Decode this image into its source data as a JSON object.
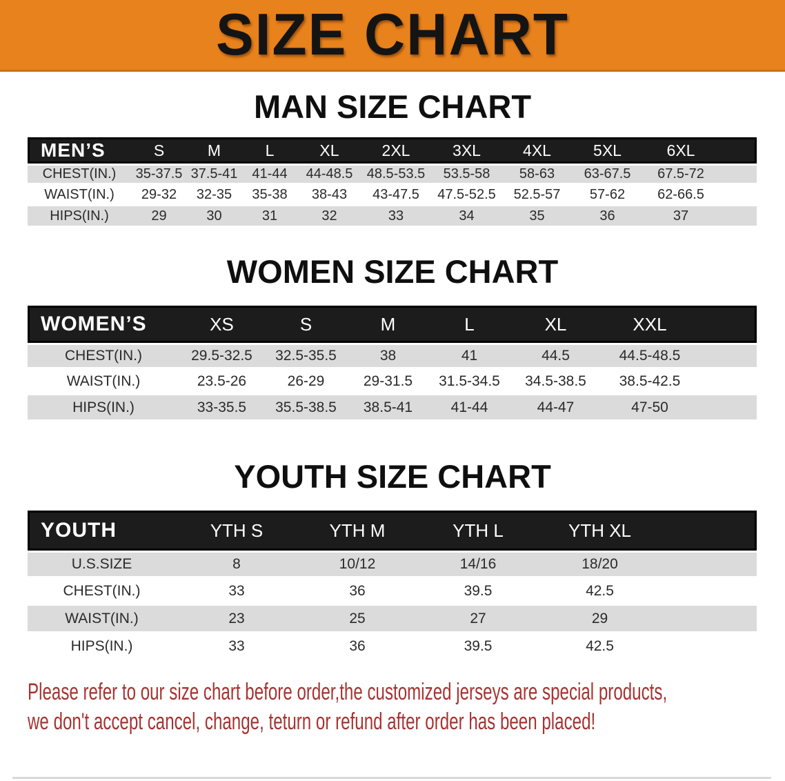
{
  "banner": {
    "title": "SIZE CHART",
    "bg_color": "#E8821C",
    "text_color": "#141414"
  },
  "sections": [
    {
      "id": "men",
      "heading": "MAN SIZE CHART",
      "table": {
        "corner": "MEN’S",
        "sizes": [
          "S",
          "M",
          "L",
          "XL",
          "2XL",
          "3XL",
          "4XL",
          "5XL",
          "6XL"
        ],
        "rows": [
          {
            "label": "CHEST(IN.)",
            "shade": true,
            "values": [
              "35-37.5",
              "37.5-41",
              "41-44",
              "44-48.5",
              "48.5-53.5",
              "53.5-58",
              "58-63",
              "63-67.5",
              "67.5-72"
            ]
          },
          {
            "label": "WAIST(IN.)",
            "shade": false,
            "values": [
              "29-32",
              "32-35",
              "35-38",
              "38-43",
              "43-47.5",
              "47.5-52.5",
              "52.5-57",
              "57-62",
              "62-66.5"
            ]
          },
          {
            "label": "HIPS(IN.)",
            "shade": true,
            "values": [
              "29",
              "30",
              "31",
              "32",
              "33",
              "34",
              "35",
              "36",
              "37"
            ]
          }
        ]
      }
    },
    {
      "id": "women",
      "heading": "WOMEN SIZE CHART",
      "table": {
        "corner": "WOMEN’S",
        "sizes": [
          "XS",
          "S",
          "M",
          "L",
          "XL",
          "XXL"
        ],
        "rows": [
          {
            "label": "CHEST(IN.)",
            "shade": true,
            "values": [
              "29.5-32.5",
              "32.5-35.5",
              "38",
              "41",
              "44.5",
              "44.5-48.5"
            ]
          },
          {
            "label": "WAIST(IN.)",
            "shade": false,
            "values": [
              "23.5-26",
              "26-29",
              "29-31.5",
              "31.5-34.5",
              "34.5-38.5",
              "38.5-42.5"
            ]
          },
          {
            "label": "HIPS(IN.)",
            "shade": true,
            "values": [
              "33-35.5",
              "35.5-38.5",
              "38.5-41",
              "41-44",
              "44-47",
              "47-50"
            ]
          }
        ]
      }
    },
    {
      "id": "youth",
      "heading": "YOUTH SIZE CHART",
      "table": {
        "corner": "YOUTH",
        "sizes": [
          "YTH S",
          "YTH M",
          "YTH L",
          "YTH XL"
        ],
        "rows": [
          {
            "label": "U.S.SIZE",
            "shade": true,
            "values": [
              "8",
              "10/12",
              "14/16",
              "18/20"
            ]
          },
          {
            "label": "CHEST(IN.)",
            "shade": false,
            "values": [
              "33",
              "36",
              "39.5",
              "42.5"
            ]
          },
          {
            "label": "WAIST(IN.)",
            "shade": true,
            "values": [
              "23",
              "25",
              "27",
              "29"
            ]
          },
          {
            "label": "HIPS(IN.)",
            "shade": false,
            "values": [
              "33",
              "36",
              "39.5",
              "42.5"
            ]
          }
        ]
      }
    }
  ],
  "disclaimer": {
    "line1": "Please refer to our size chart before order,the customized jerseys are special products,",
    "line2": "we don't accept cancel, change, teturn or refund after order has been placed!",
    "text_color": "#A63331"
  },
  "colors": {
    "banner_orange": "#E8821C",
    "header_bar_black": "#1C1C1C",
    "row_shade_gray": "#DBDBDB",
    "disclaimer_red": "#A63331"
  }
}
